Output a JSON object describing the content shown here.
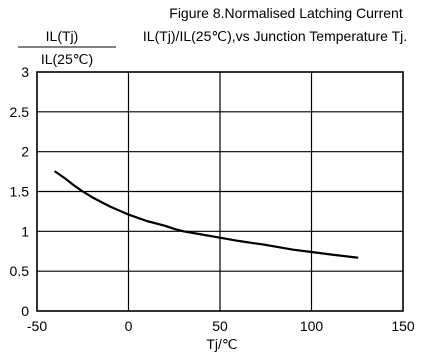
{
  "chart_data": {
    "type": "line",
    "title": "Figure 8.Normalised Latching Current",
    "subtitle": "IL(Tj)/IL(25℃),vs Junction Temperature Tj.",
    "ylabel_top": "IL(Tj)",
    "ylabel_bottom": "IL(25℃)",
    "xlabel": "Tj/℃",
    "xlim": [
      -50,
      150
    ],
    "ylim": [
      0,
      3
    ],
    "xticks": [
      "-50",
      "0",
      "50",
      "100",
      "150"
    ],
    "yticks": [
      "0",
      "0.5",
      "1",
      "1.5",
      "2",
      "2.5",
      "3"
    ],
    "grid": true,
    "series": [
      {
        "x": [
          -40,
          -35,
          -30,
          -25,
          -20,
          -15,
          -10,
          -5,
          0,
          5,
          10,
          20,
          25,
          30,
          40,
          50,
          60,
          75,
          90,
          100,
          110,
          125
        ],
        "y": [
          1.75,
          1.67,
          1.58,
          1.5,
          1.43,
          1.37,
          1.31,
          1.26,
          1.21,
          1.17,
          1.13,
          1.07,
          1.03,
          1.0,
          0.96,
          0.92,
          0.88,
          0.83,
          0.77,
          0.74,
          0.71,
          0.67
        ]
      }
    ]
  }
}
